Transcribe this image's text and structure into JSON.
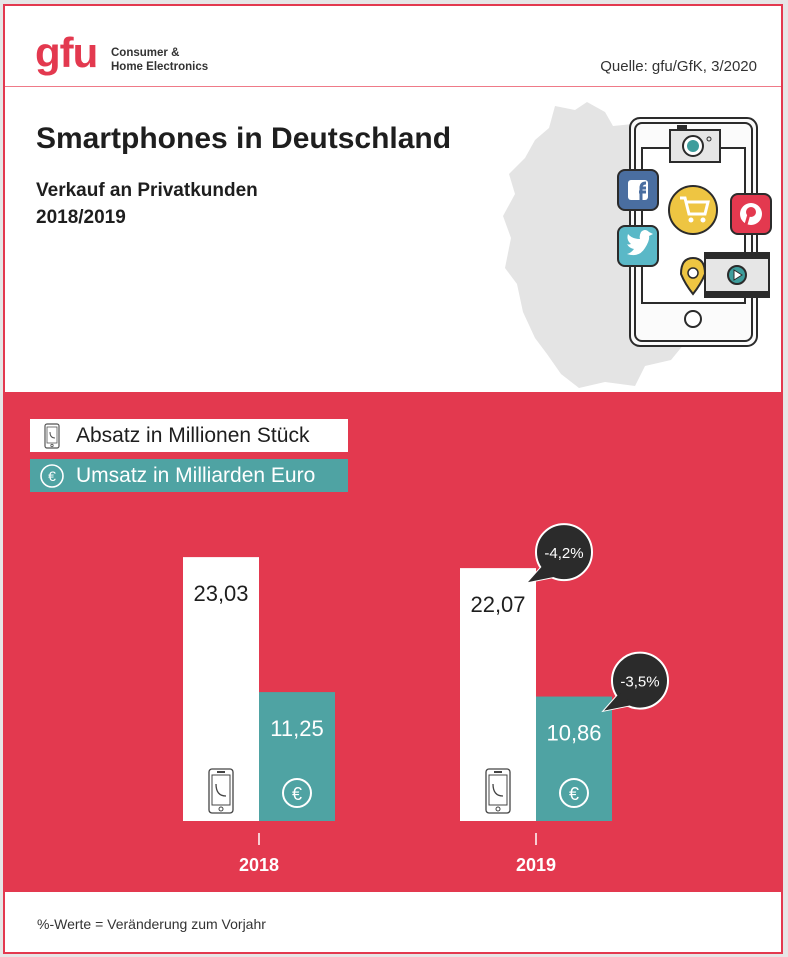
{
  "header": {
    "logo": "gfu",
    "logo_sub_line1": "Consumer &",
    "logo_sub_line2": "Home Electronics",
    "source": "Quelle: gfu/GfK, 3/2020"
  },
  "title": "Smartphones in Deutschland",
  "subtitle_line1": "Verkauf an Privatkunden",
  "subtitle_line2": "2018/2019",
  "illustration": {
    "icons": [
      "camera-icon",
      "facebook-icon",
      "shopping-cart-icon",
      "pinterest-icon",
      "twitter-icon",
      "location-pin-icon",
      "video-play-icon"
    ]
  },
  "colors": {
    "brand_red": "#e3394f",
    "teal": "#4fa3a3",
    "white_bar": "#ffffff",
    "callout": "#2b2b2b"
  },
  "legend": [
    {
      "label": "Absatz in Millionen Stück",
      "icon": "smartphone-icon"
    },
    {
      "label": "Umsatz in Milliarden Euro",
      "icon": "euro-icon"
    }
  ],
  "chart_data": {
    "type": "bar",
    "title": "Smartphones in Deutschland – Verkauf an Privatkunden 2018/2019",
    "categories": [
      "2018",
      "2019"
    ],
    "series": [
      {
        "name": "Absatz in Millionen Stück",
        "values": [
          23.03,
          22.07
        ],
        "labels": [
          "23,03",
          "22,07"
        ],
        "icon": "smartphone-icon"
      },
      {
        "name": "Umsatz in Milliarden Euro",
        "values": [
          11.25,
          10.86
        ],
        "labels": [
          "11,25",
          "10,86"
        ],
        "icon": "euro-icon"
      }
    ],
    "changes": [
      {
        "category": "2019",
        "series": "Absatz in Millionen Stück",
        "label": "-4,2%"
      },
      {
        "category": "2019",
        "series": "Umsatz in Milliarden Euro",
        "label": "-3,5%"
      }
    ],
    "xlabel": "",
    "ylabel": "",
    "ylim": [
      0,
      24
    ],
    "grid": false,
    "legend_position": "top-left"
  },
  "footnote": "%-Werte = Veränderung zum Vorjahr"
}
